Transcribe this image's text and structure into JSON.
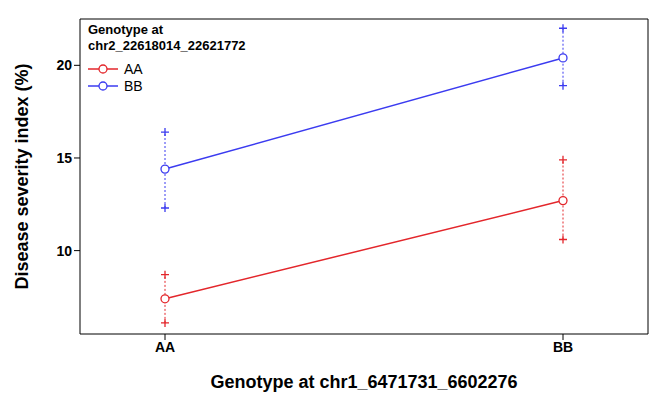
{
  "chart_data": {
    "type": "line",
    "x_label": "Genotype at chr1_6471731_6602276",
    "y_label": "Disease severity index (%)",
    "legend_title": "Genotype at\nchr2_22618014_22621772",
    "legend": "upper left",
    "categories": [
      "AA",
      "BB"
    ],
    "series": [
      {
        "name": "AA",
        "color": "#e3262b",
        "marker": "circle_open",
        "line_style": "solid",
        "values": [
          7.4,
          12.7
        ],
        "error_low": [
          6.1,
          10.6
        ],
        "error_high": [
          8.7,
          14.9
        ]
      },
      {
        "name": "BB",
        "color": "#3b3bf0",
        "marker": "circle_open",
        "line_style": "solid",
        "values": [
          14.4,
          20.4
        ],
        "error_low": [
          12.3,
          18.9
        ],
        "error_high": [
          16.4,
          22.0
        ]
      }
    ],
    "ylim": [
      5.5,
      22.5
    ],
    "yticks": [
      10,
      15,
      20
    ]
  }
}
